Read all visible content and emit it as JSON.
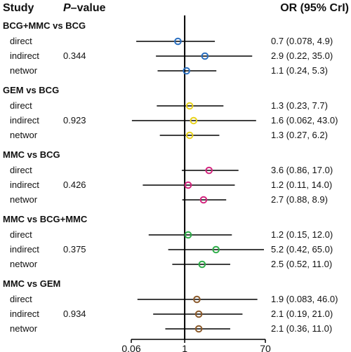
{
  "headers": {
    "study": "Study",
    "p_value_prefix": "P",
    "p_value_suffix": "–value",
    "or": "OR (95% CrI)"
  },
  "chart_data": {
    "type": "forest",
    "x_scale": "log",
    "x_ticks": [
      0.06,
      1,
      70
    ],
    "x_tick_labels": [
      "0.06",
      "1",
      "70"
    ],
    "reference_line": 1,
    "groups": [
      {
        "title": "BCG+MMC vs BCG",
        "color": "#2a6fc0",
        "p_value": "0.344",
        "rows": [
          {
            "label": "direct",
            "or": 0.7,
            "low": 0.078,
            "high": 4.9,
            "text": "0.7 (0.078, 4.9)"
          },
          {
            "label": "indirect",
            "or": 2.9,
            "low": 0.22,
            "high": 35.0,
            "text": "2.9 (0.22, 35.0)"
          },
          {
            "label": "networ",
            "or": 1.1,
            "low": 0.24,
            "high": 5.3,
            "text": "1.1 (0.24, 5.3)"
          }
        ]
      },
      {
        "title": "GEM vs BCG",
        "color": "#e9d31c",
        "p_value": "0.923",
        "rows": [
          {
            "label": "direct",
            "or": 1.3,
            "low": 0.23,
            "high": 7.7,
            "text": "1.3 (0.23, 7.7)"
          },
          {
            "label": "indirect",
            "or": 1.6,
            "low": 0.062,
            "high": 43.0,
            "text": "1.6 (0.062, 43.0)"
          },
          {
            "label": "networ",
            "or": 1.3,
            "low": 0.27,
            "high": 6.2,
            "text": "1.3 (0.27, 6.2)"
          }
        ]
      },
      {
        "title": "MMC vs BCG",
        "color": "#d4257f",
        "p_value": "0.426",
        "rows": [
          {
            "label": "direct",
            "or": 3.6,
            "low": 0.86,
            "high": 17.0,
            "text": "3.6 (0.86, 17.0)"
          },
          {
            "label": "indirect",
            "or": 1.2,
            "low": 0.11,
            "high": 14.0,
            "text": "1.2 (0.11, 14.0)"
          },
          {
            "label": "networ",
            "or": 2.7,
            "low": 0.88,
            "high": 8.9,
            "text": "2.7 (0.88, 8.9)"
          }
        ]
      },
      {
        "title": "MMC vs BCG+MMC",
        "color": "#2fae4a",
        "p_value": "0.375",
        "rows": [
          {
            "label": "direct",
            "or": 1.2,
            "low": 0.15,
            "high": 12.0,
            "text": "1.2 (0.15, 12.0)"
          },
          {
            "label": "indirect",
            "or": 5.2,
            "low": 0.42,
            "high": 65.0,
            "text": "5.2 (0.42, 65.0)"
          },
          {
            "label": "networ",
            "or": 2.5,
            "low": 0.52,
            "high": 11.0,
            "text": "2.5 (0.52, 11.0)"
          }
        ]
      },
      {
        "title": "MMC vs GEM",
        "color": "#8b5a2b",
        "p_value": "0.934",
        "rows": [
          {
            "label": "direct",
            "or": 1.9,
            "low": 0.083,
            "high": 46.0,
            "text": "1.9 (0.083, 46.0)"
          },
          {
            "label": "indirect",
            "or": 2.1,
            "low": 0.19,
            "high": 21.0,
            "text": "2.1 (0.19, 21.0)"
          },
          {
            "label": "networ",
            "or": 2.1,
            "low": 0.36,
            "high": 11.0,
            "text": "2.1 (0.36, 11.0)"
          }
        ]
      }
    ]
  }
}
